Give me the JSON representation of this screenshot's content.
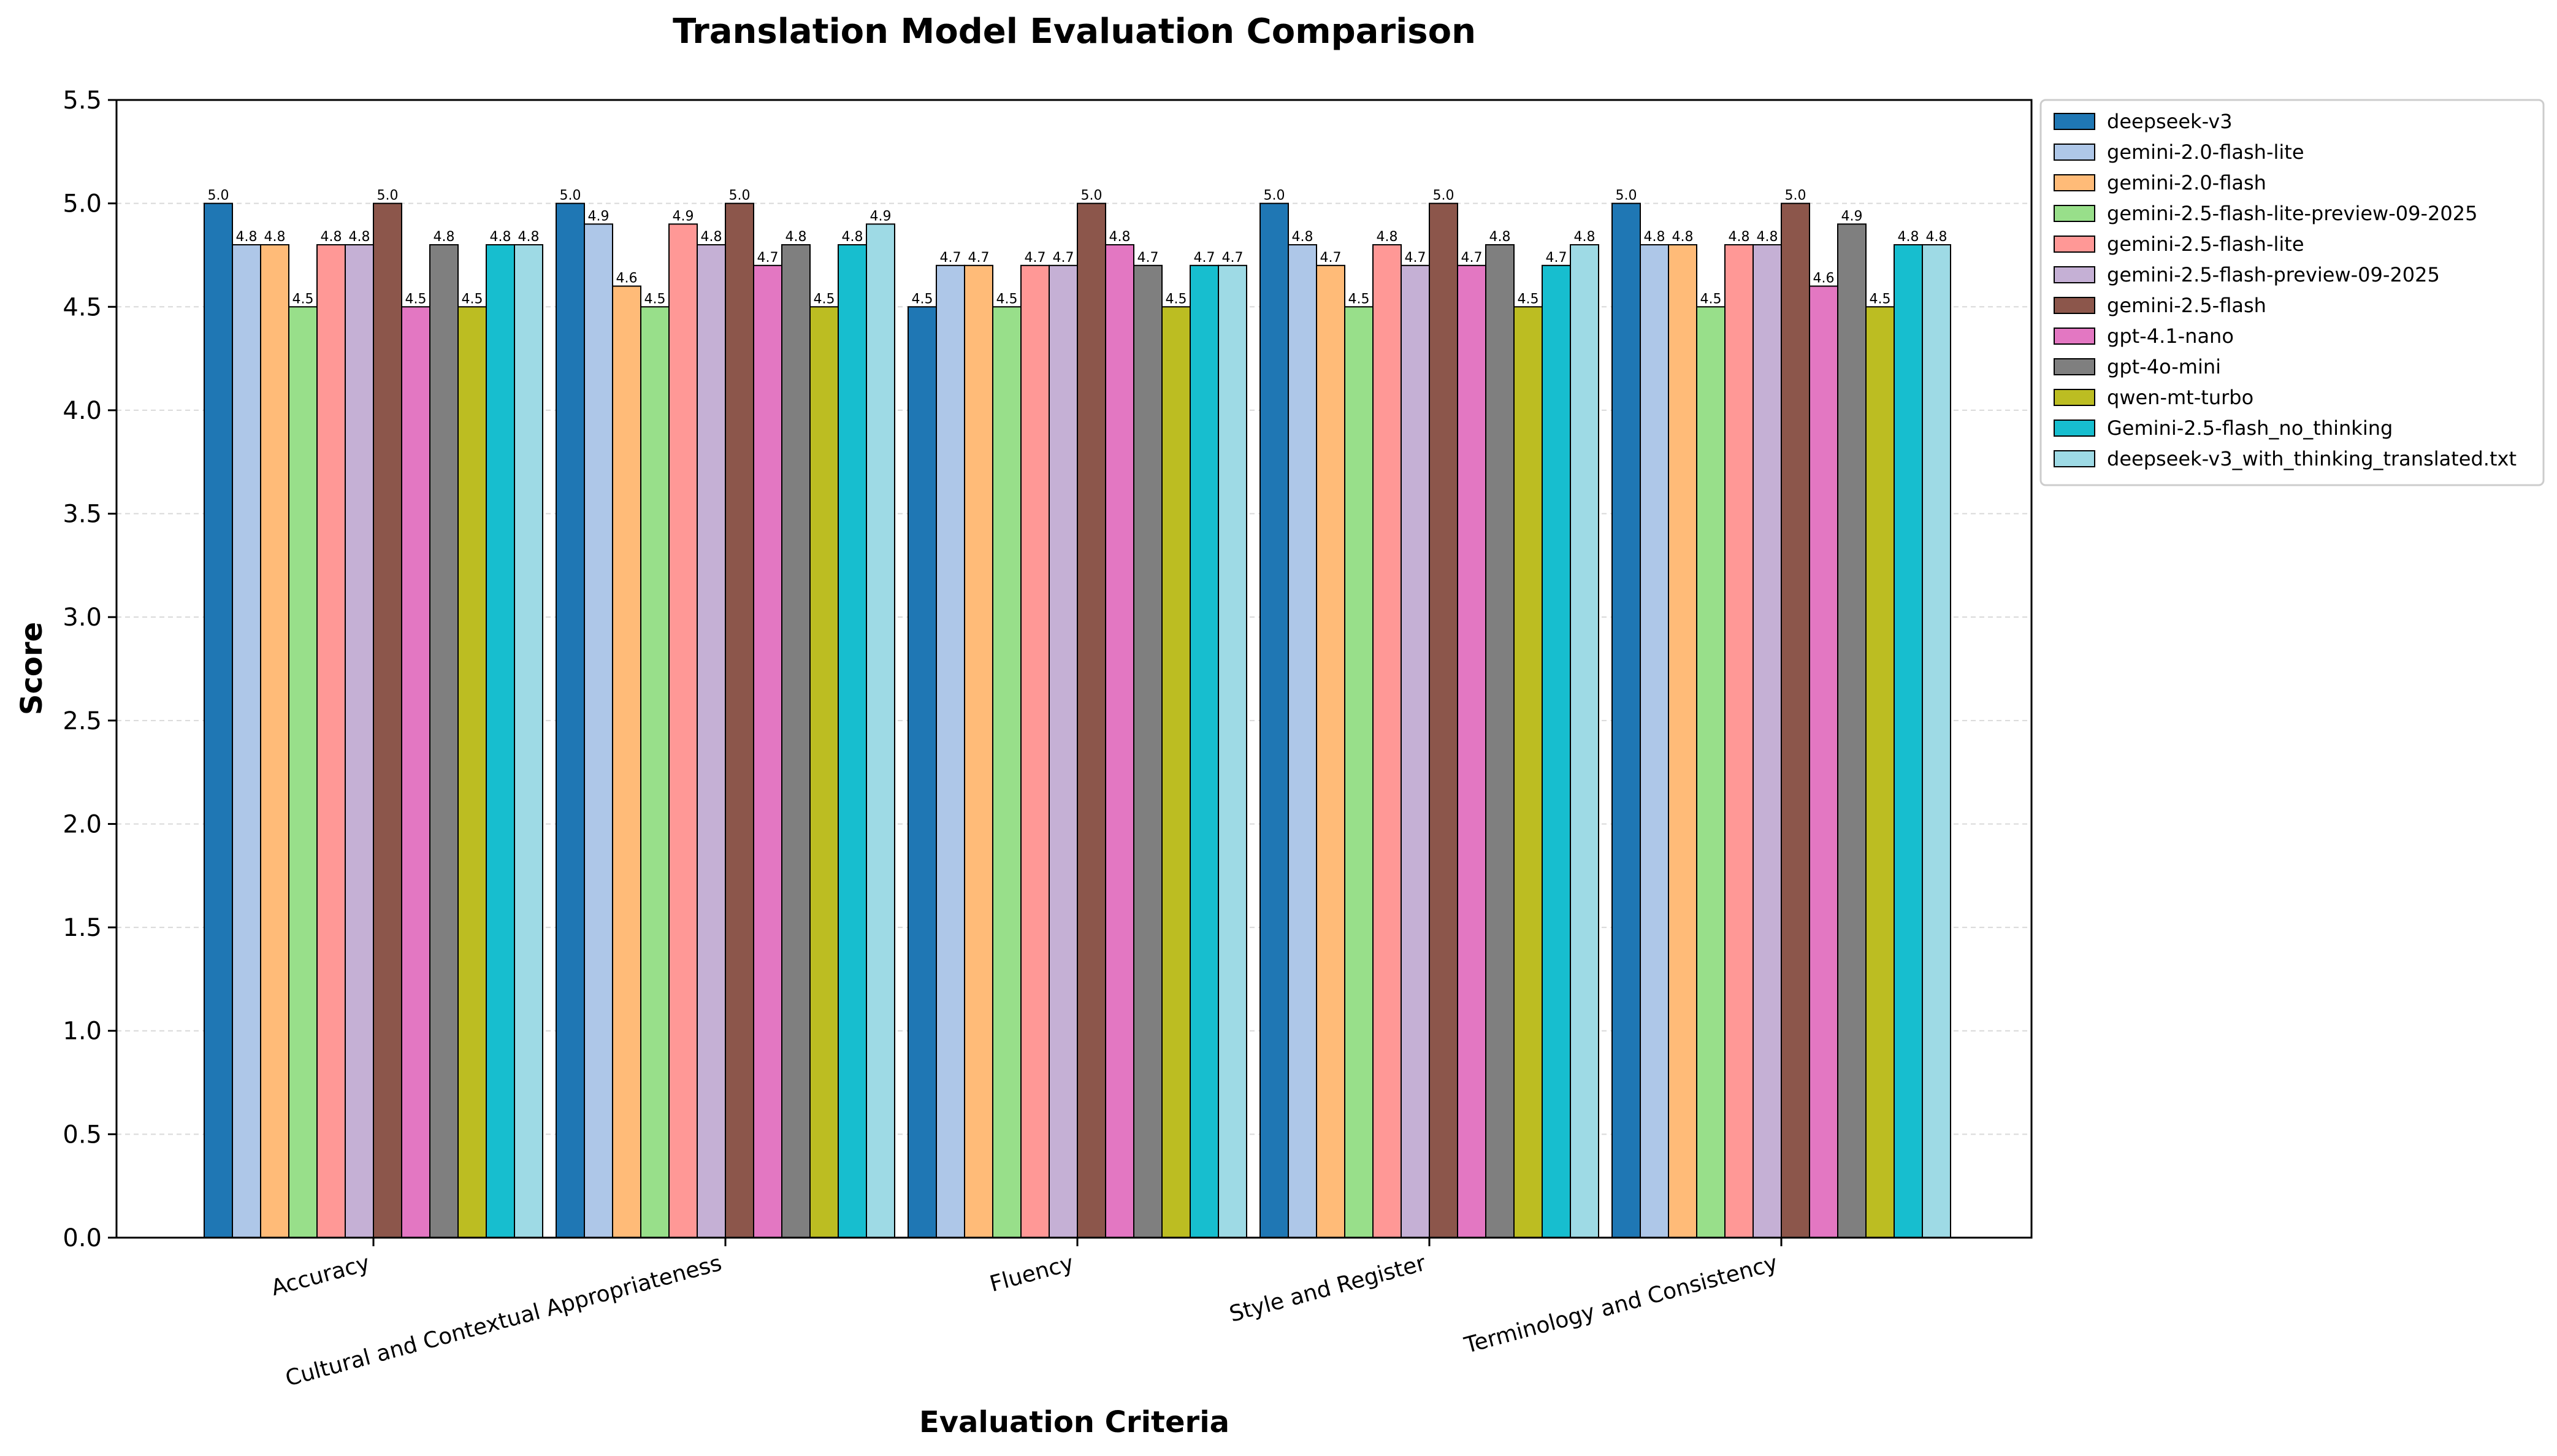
{
  "chart_data": {
    "type": "bar",
    "title": "Translation Model Evaluation Comparison",
    "xlabel": "Evaluation Criteria",
    "ylabel": "Score",
    "ylim": [
      0,
      5.5
    ],
    "yticks": [
      "0.0",
      "0.5",
      "1.0",
      "1.5",
      "2.0",
      "2.5",
      "3.0",
      "3.5",
      "4.0",
      "4.5",
      "5.0",
      "5.5"
    ],
    "grid": true,
    "legend_position": "outside-right",
    "categories": [
      "Accuracy",
      "Cultural and Contextual Appropriateness",
      "Fluency",
      "Style and Register",
      "Terminology and Consistency"
    ],
    "series": [
      {
        "name": "deepseek-v3",
        "color": "#1f77b4",
        "values": [
          5.0,
          5.0,
          4.5,
          5.0,
          5.0
        ]
      },
      {
        "name": "gemini-2.0-flash-lite",
        "color": "#aec7e8",
        "values": [
          4.8,
          4.9,
          4.7,
          4.8,
          4.8
        ]
      },
      {
        "name": "gemini-2.0-flash",
        "color": "#ffbb78",
        "values": [
          4.8,
          4.6,
          4.7,
          4.7,
          4.8
        ]
      },
      {
        "name": "gemini-2.5-flash-lite-preview-09-2025",
        "color": "#98df8a",
        "values": [
          4.5,
          4.5,
          4.5,
          4.5,
          4.5
        ]
      },
      {
        "name": "gemini-2.5-flash-lite",
        "color": "#ff9896",
        "values": [
          4.8,
          4.9,
          4.7,
          4.8,
          4.8
        ]
      },
      {
        "name": "gemini-2.5-flash-preview-09-2025",
        "color": "#c5b0d5",
        "values": [
          4.8,
          4.8,
          4.7,
          4.7,
          4.8
        ]
      },
      {
        "name": "gemini-2.5-flash",
        "color": "#8c564b",
        "values": [
          5.0,
          5.0,
          5.0,
          5.0,
          5.0
        ]
      },
      {
        "name": "gpt-4.1-nano",
        "color": "#e377c2",
        "values": [
          4.5,
          4.7,
          4.8,
          4.7,
          4.6
        ]
      },
      {
        "name": "gpt-4o-mini",
        "color": "#7f7f7f",
        "values": [
          4.8,
          4.8,
          4.7,
          4.8,
          4.9
        ]
      },
      {
        "name": "qwen-mt-turbo",
        "color": "#bcbd22",
        "values": [
          4.5,
          4.5,
          4.5,
          4.5,
          4.5
        ]
      },
      {
        "name": "Gemini-2.5-flash_no_thinking",
        "color": "#17becf",
        "values": [
          4.8,
          4.8,
          4.7,
          4.7,
          4.8
        ]
      },
      {
        "name": "deepseek-v3_with_thinking_translated.txt",
        "color": "#9edae5",
        "values": [
          4.8,
          4.9,
          4.7,
          4.8,
          4.8
        ]
      }
    ]
  }
}
